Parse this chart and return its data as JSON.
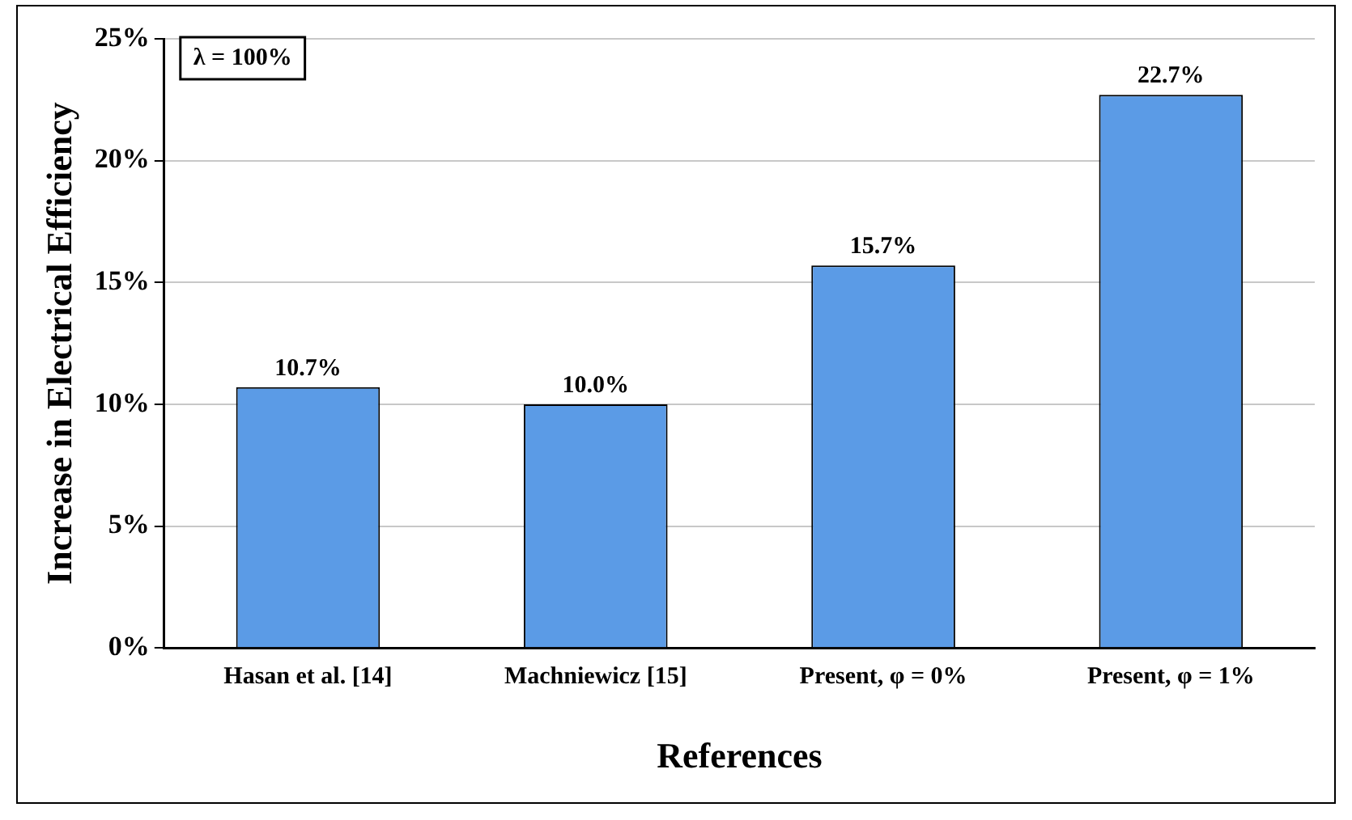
{
  "chart_data": {
    "type": "bar",
    "xlabel": "References",
    "ylabel": "Increase in Electrical Efficiency",
    "categories": [
      "Hasan et al. [14]",
      "Machniewicz [15]",
      "Present, φ = 0%",
      "Present, φ = 1%"
    ],
    "values": [
      10.7,
      10.0,
      15.7,
      22.7
    ],
    "value_labels": [
      "10.7%",
      "10.0%",
      "15.7%",
      "22.7%"
    ],
    "color": "#5b9be6",
    "ylim": [
      0,
      25
    ],
    "yticks": [
      {
        "value": 0,
        "label": "0%"
      },
      {
        "value": 5,
        "label": "5%"
      },
      {
        "value": 10,
        "label": "10%"
      },
      {
        "value": 15,
        "label": "15%"
      },
      {
        "value": 20,
        "label": "20%"
      },
      {
        "value": 25,
        "label": "25%"
      }
    ],
    "grid": "y",
    "legend": false,
    "annotations": [
      "λ = 100%"
    ]
  }
}
